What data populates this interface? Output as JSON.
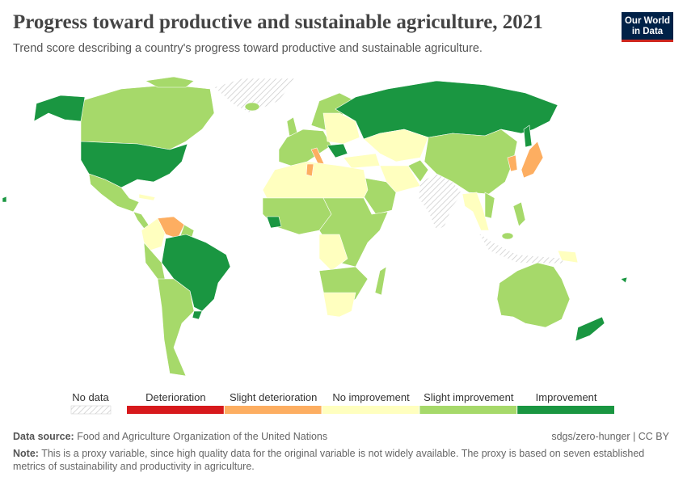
{
  "header": {
    "title": "Progress toward productive and sustainable agriculture, 2021",
    "subtitle": "Trend score describing a country's progress toward productive and sustainable agriculture."
  },
  "logo": {
    "line1": "Our World",
    "line2": "in Data"
  },
  "legend": {
    "no_data": "No data",
    "categories": [
      {
        "label": "Deterioration",
        "color": "#d7191c"
      },
      {
        "label": "Slight deterioration",
        "color": "#fdae61"
      },
      {
        "label": "No improvement",
        "color": "#ffffbf"
      },
      {
        "label": "Slight improvement",
        "color": "#a6d96a"
      },
      {
        "label": "Improvement",
        "color": "#1a9641"
      }
    ]
  },
  "footer": {
    "source_label": "Data source:",
    "source": "Food and Agriculture Organization of the United Nations",
    "license": "sdgs/zero-hunger | CC BY",
    "note_label": "Note:",
    "note": "This is a proxy variable, since high quality data for the original variable is not widely available. The proxy is based on seven established metrics of sustainability and productivity in agriculture."
  }
}
